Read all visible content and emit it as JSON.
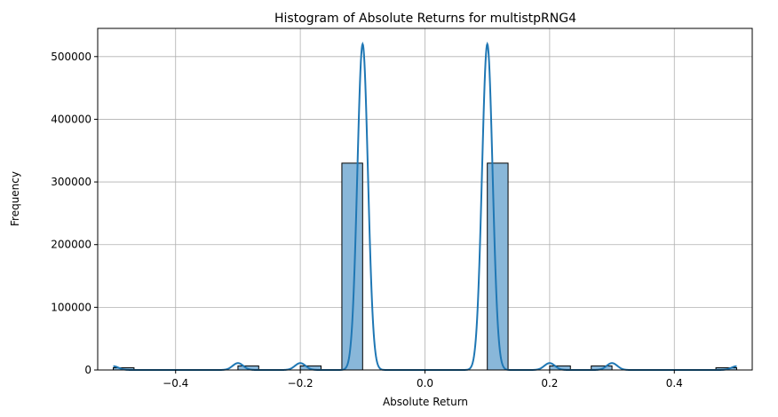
{
  "chart_data": {
    "type": "bar",
    "title": "Histogram of Absolute Returns for multistpRNG4",
    "xlabel": "Absolute Return",
    "ylabel": "Frequency",
    "xlim": [
      -0.525,
      0.525
    ],
    "ylim": [
      0,
      545000
    ],
    "xticks": [
      -0.4,
      -0.2,
      0.0,
      0.2,
      0.4
    ],
    "xtick_labels": [
      "−0.4",
      "−0.2",
      "0.0",
      "0.2",
      "0.4"
    ],
    "yticks": [
      0,
      100000,
      200000,
      300000,
      400000,
      500000
    ],
    "ytick_labels": [
      "0",
      "100000",
      "200000",
      "300000",
      "400000",
      "500000"
    ],
    "grid": true,
    "bar_color": "#89b7d9",
    "bar_edge_color": "#000000",
    "kde_color": "#1f77b4",
    "bins": [
      {
        "x0": -0.5,
        "x1": -0.4667,
        "count": 3500
      },
      {
        "x0": -0.3,
        "x1": -0.2667,
        "count": 6500
      },
      {
        "x0": -0.2,
        "x1": -0.1667,
        "count": 6500
      },
      {
        "x0": -0.1333,
        "x1": -0.1,
        "count": 330000
      },
      {
        "x0": 0.1,
        "x1": 0.1333,
        "count": 330000
      },
      {
        "x0": 0.2,
        "x1": 0.2333,
        "count": 6500
      },
      {
        "x0": 0.2667,
        "x1": 0.3,
        "count": 6500
      },
      {
        "x0": 0.4667,
        "x1": 0.5,
        "count": 3500
      }
    ],
    "kde_peaks": [
      {
        "center": -0.5,
        "height": 6000
      },
      {
        "center": -0.3,
        "height": 11000
      },
      {
        "center": -0.2,
        "height": 11000
      },
      {
        "center": -0.1,
        "height": 520000
      },
      {
        "center": 0.1,
        "height": 520000
      },
      {
        "center": 0.2,
        "height": 11000
      },
      {
        "center": 0.3,
        "height": 11000
      },
      {
        "center": 0.5,
        "height": 6000
      }
    ]
  }
}
